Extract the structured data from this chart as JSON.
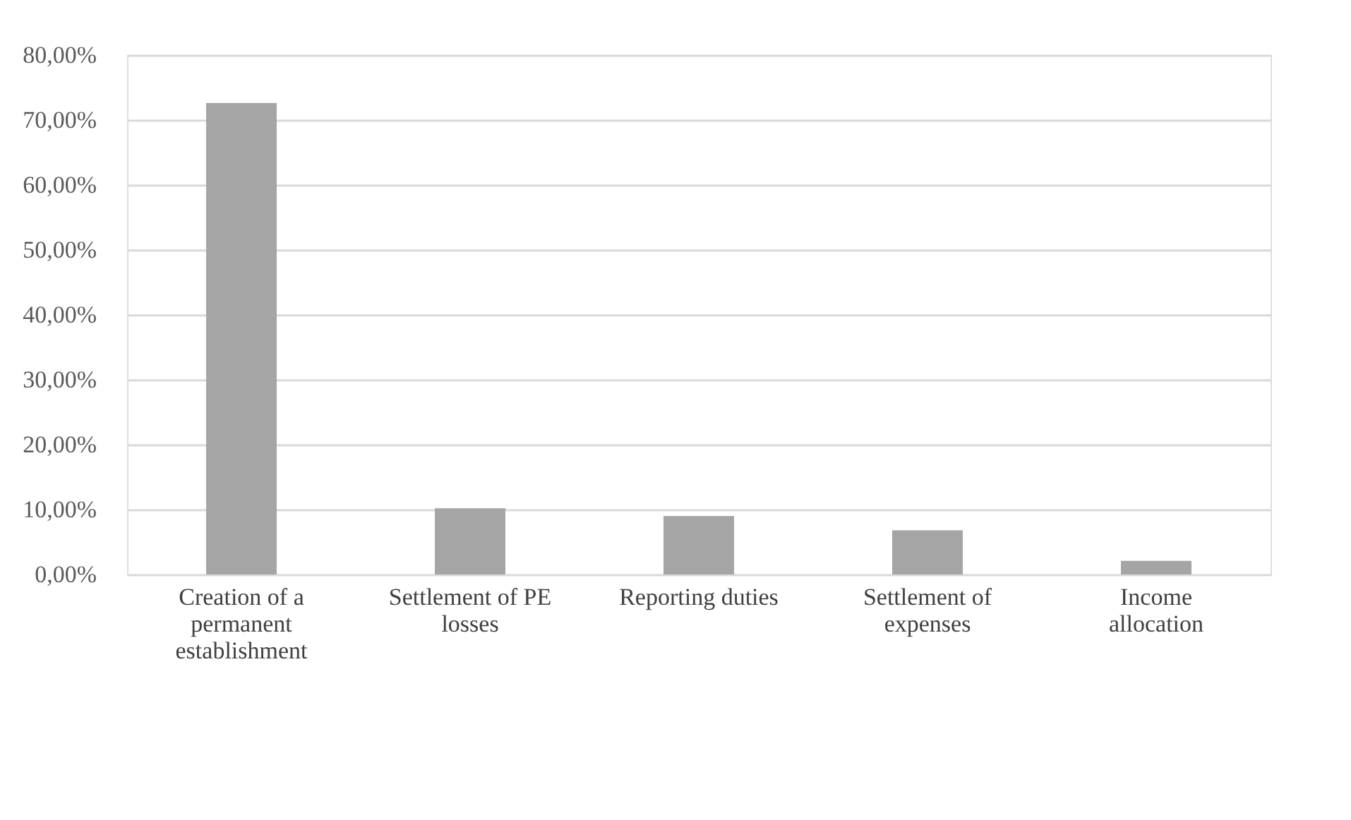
{
  "chart_data": {
    "type": "bar",
    "categories": [
      "Creation of a permanent establishment",
      "Settlement of PE losses",
      "Reporting duties",
      "Settlement of expenses",
      "Income allocation"
    ],
    "values": [
      72.6,
      10.2,
      9.0,
      6.8,
      2.1
    ],
    "color": "#a5a5a5",
    "ylim": [
      0,
      80
    ],
    "yticks": [
      {
        "value": 0,
        "label": "0,00%"
      },
      {
        "value": 10,
        "label": "10,00%"
      },
      {
        "value": 20,
        "label": "20,00%"
      },
      {
        "value": 30,
        "label": "30,00%"
      },
      {
        "value": 40,
        "label": "40,00%"
      },
      {
        "value": 50,
        "label": "50,00%"
      },
      {
        "value": 60,
        "label": "60,00%"
      },
      {
        "value": 70,
        "label": "70,00%"
      },
      {
        "value": 80,
        "label": "80,00%"
      }
    ],
    "grid": "y"
  }
}
